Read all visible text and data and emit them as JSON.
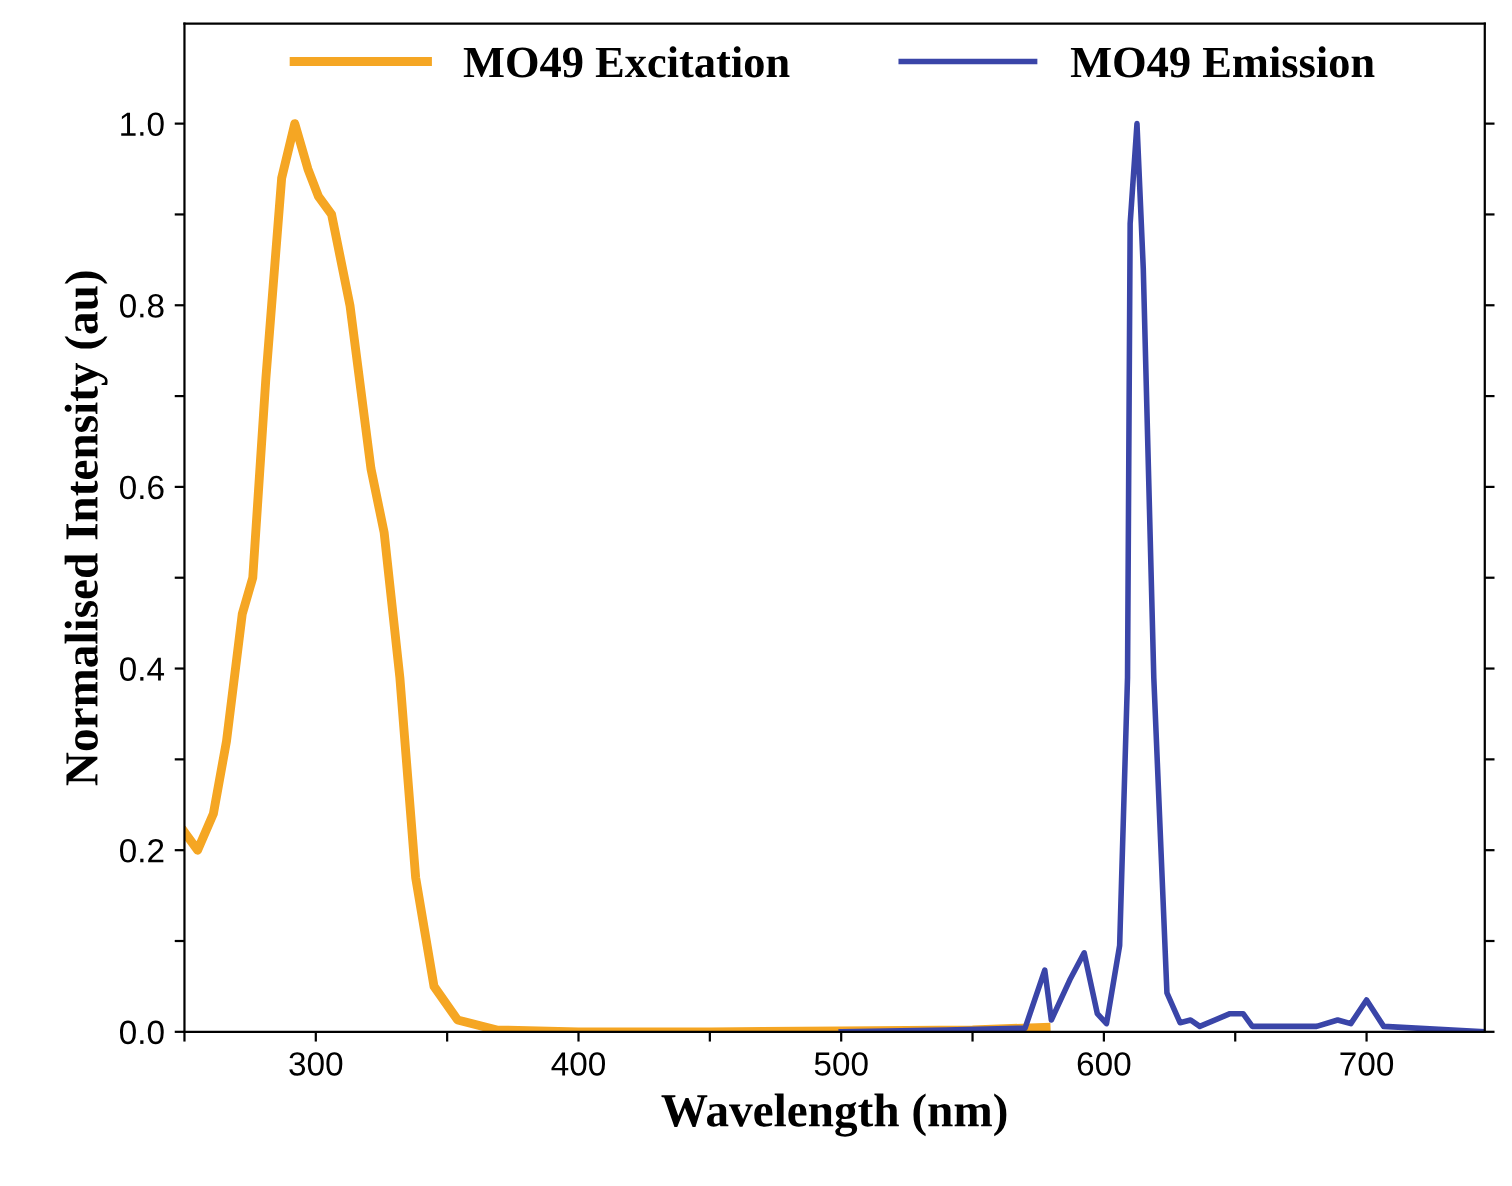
{
  "chart_data": {
    "type": "line",
    "xlabel": "Wavelength (nm)",
    "ylabel": "Normalised Intensity (au)",
    "xlim": [
      250,
      745
    ],
    "ylim": [
      0,
      1.11
    ],
    "xticks": [
      {
        "value": 250,
        "label": null
      },
      300,
      {
        "value": 350,
        "label": null
      },
      400,
      {
        "value": 450,
        "label": null
      },
      500,
      {
        "value": 550,
        "label": null
      },
      600,
      {
        "value": 650,
        "label": null
      },
      700
    ],
    "yticks": [
      "0.0",
      {
        "value": 0.1,
        "label": null
      },
      {
        "value": 0.2,
        "label": "0.2"
      },
      {
        "value": 0.3,
        "label": null
      },
      {
        "value": 0.4,
        "label": "0.4"
      },
      {
        "value": 0.5,
        "label": null
      },
      {
        "value": 0.6,
        "label": "0.6"
      },
      {
        "value": 0.7,
        "label": null
      },
      {
        "value": 0.8,
        "label": "0.8"
      },
      {
        "value": 0.9,
        "label": null
      },
      {
        "value": 1.0,
        "label": "1.0"
      }
    ],
    "grid": false,
    "legend": "top",
    "marker": "none",
    "line_style": "solid",
    "series": [
      {
        "name": "MO49 Excitation",
        "color": "#f5a623",
        "x": [
          250,
          255,
          261,
          266,
          272,
          276,
          281,
          287,
          292,
          297,
          301,
          306,
          313,
          321,
          326,
          332,
          338,
          345,
          354,
          369,
          400,
          450,
          500,
          550,
          578
        ],
        "values": [
          0.22,
          0.2,
          0.24,
          0.32,
          0.46,
          0.5,
          0.72,
          0.94,
          1.0,
          0.95,
          0.92,
          0.9,
          0.8,
          0.62,
          0.55,
          0.39,
          0.17,
          0.05,
          0.013,
          0.002,
          0,
          0,
          0.001,
          0.002,
          0.005
        ]
      },
      {
        "name": "MO49 Emission",
        "color": "#3a45a8",
        "x": [
          500,
          540,
          570,
          577.5,
          580,
          587,
          592.5,
          597.5,
          601,
          606,
          609,
          610,
          612.6,
          615,
          619,
          624,
          629,
          633,
          636.5,
          648,
          653,
          656.5,
          681,
          689,
          694,
          700,
          706.5,
          745
        ],
        "values": [
          0,
          0.002,
          0.004,
          0.068,
          0.013,
          0.057,
          0.087,
          0.02,
          0.009,
          0.095,
          0.39,
          0.89,
          1.0,
          0.84,
          0.39,
          0.043,
          0.01,
          0.013,
          0.006,
          0.02,
          0.02,
          0.006,
          0.006,
          0.013,
          0.009,
          0.035,
          0.006,
          0
        ]
      }
    ]
  }
}
